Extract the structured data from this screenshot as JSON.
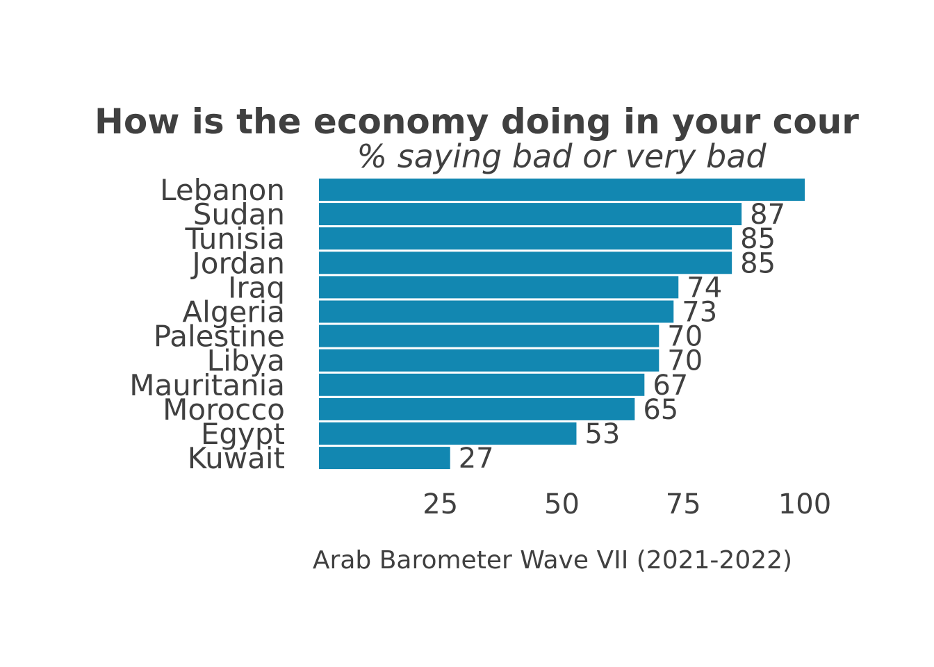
{
  "chart_data": {
    "type": "bar",
    "orientation": "horizontal",
    "title": "How is the economy doing in your cour",
    "subtitle": "% saying bad or very bad",
    "caption": "Arab Barometer Wave VII (2021-2022)",
    "categories": [
      "Lebanon",
      "Sudan",
      "Tunisia",
      "Jordan",
      "Iraq",
      "Algeria",
      "Palestine",
      "Libya",
      "Mauritania",
      "Morocco",
      "Egypt",
      "Kuwait"
    ],
    "values": [
      100,
      87,
      85,
      85,
      74,
      73,
      70,
      70,
      67,
      65,
      53,
      27
    ],
    "value_labels": [
      "",
      "87",
      "85",
      "85",
      "74",
      "73",
      "70",
      "70",
      "67",
      "65",
      "53",
      "27"
    ],
    "xlim": [
      0,
      100
    ],
    "xticks": [
      25,
      50,
      75,
      100
    ],
    "xtick_labels": [
      "25",
      "50",
      "75",
      "100"
    ],
    "grid": false,
    "bar_color": "#1287B1",
    "text_color": "#404040"
  }
}
